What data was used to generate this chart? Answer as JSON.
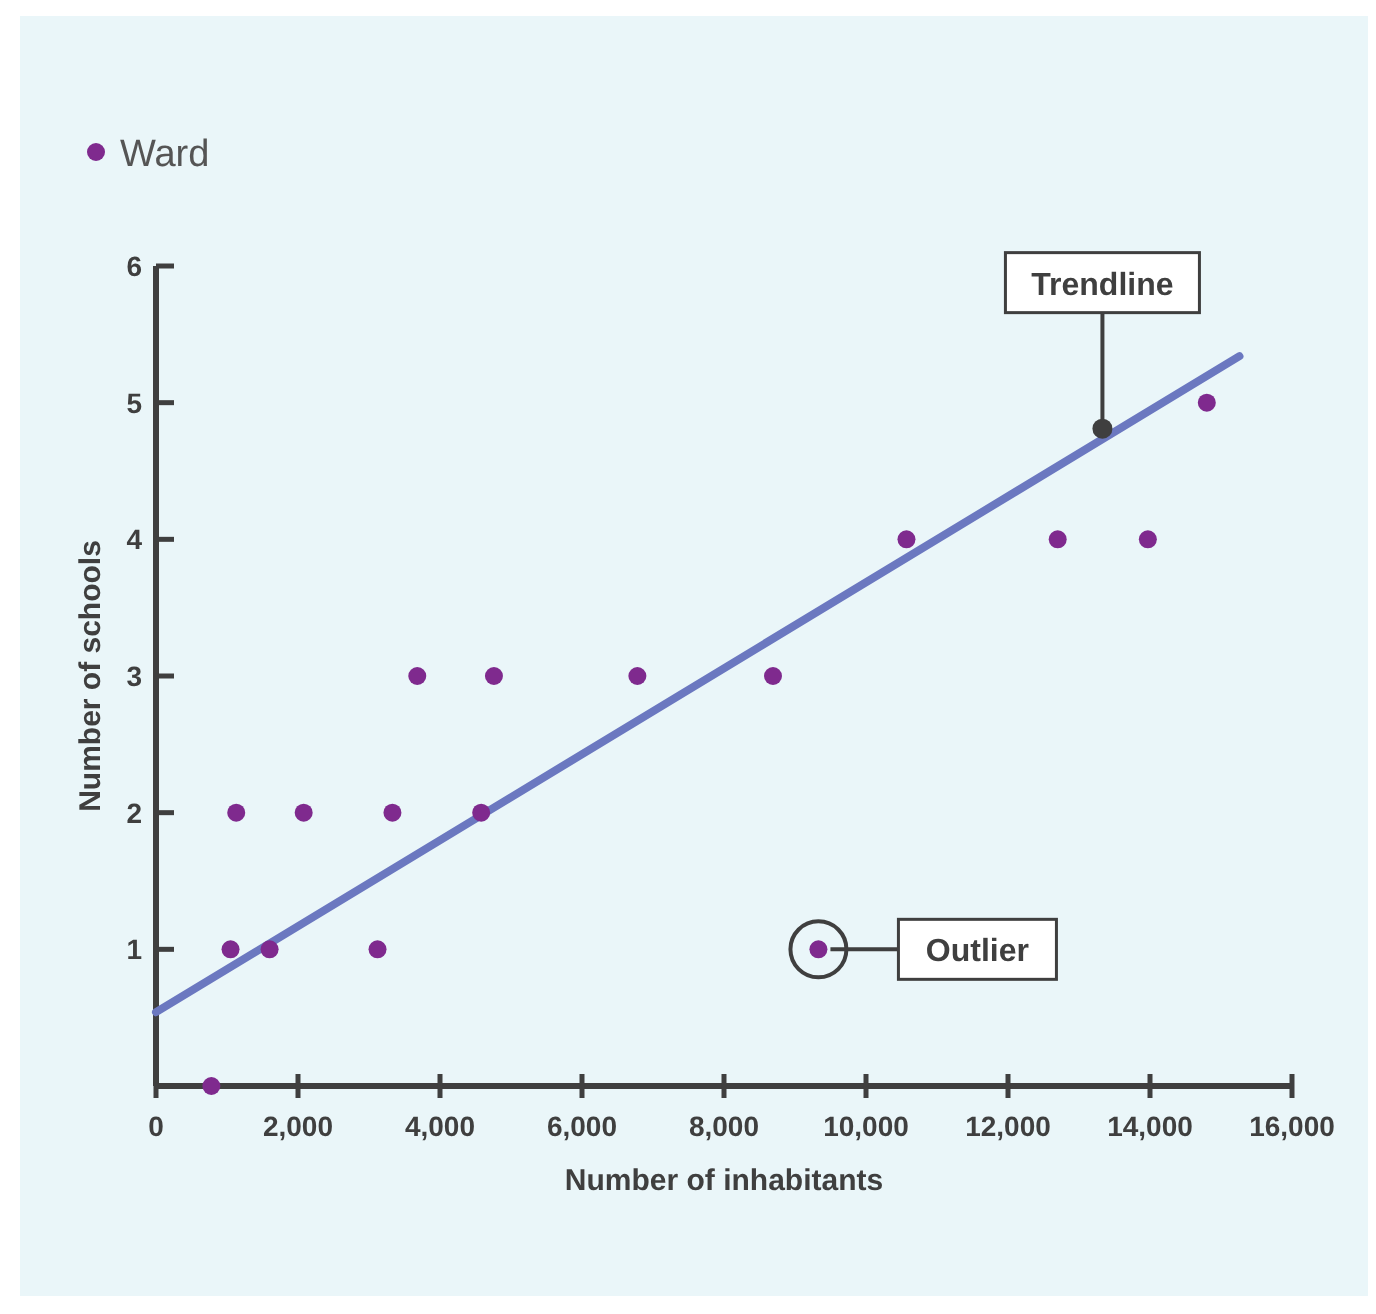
{
  "chart_data": {
    "type": "scatter",
    "xlabel": "Number of inhabitants",
    "ylabel": "Number of schools",
    "legend": "top left",
    "grid": false,
    "xlim": [
      0,
      16000
    ],
    "xticks": [
      0,
      {
        "value": 2000,
        "label": "2,000"
      },
      {
        "value": 4000,
        "label": "4,000"
      },
      {
        "value": 6000,
        "label": "6,000"
      },
      {
        "value": 8000,
        "label": "8,000"
      },
      {
        "value": 10000,
        "label": "10,000"
      },
      {
        "value": 12000,
        "label": "12,000"
      },
      {
        "value": 14000,
        "label": "14,000"
      },
      {
        "value": 16000,
        "label": "16,000"
      }
    ],
    "ylim": [
      0,
      6
    ],
    "yticks": [
      {
        "value": 0,
        "label": null
      },
      1,
      2,
      3,
      4,
      5,
      6
    ],
    "series": [
      {
        "name": "Ward",
        "marker": "circle",
        "color": "#7f2a8e",
        "x": [
          780,
          1050,
          1130,
          1600,
          2080,
          3120,
          3330,
          3680,
          4580,
          4760,
          6780,
          8690,
          9330,
          10570,
          12700,
          13970,
          14800
        ],
        "values": [
          0,
          1,
          2,
          1,
          2,
          1,
          2,
          3,
          2,
          3,
          3,
          3,
          1,
          4,
          4,
          4,
          5
        ]
      },
      {
        "type": "line",
        "marker": "none",
        "color": "#6b78c0",
        "line_style": "solid",
        "x": [
          0,
          15260
        ],
        "values": [
          0.54,
          5.34
        ]
      }
    ],
    "annotations": [
      {
        "text": "Trendline",
        "x": 13330,
        "y": 4.81
      },
      {
        "text": "Outlier",
        "x": 9330,
        "y": 1
      }
    ]
  }
}
